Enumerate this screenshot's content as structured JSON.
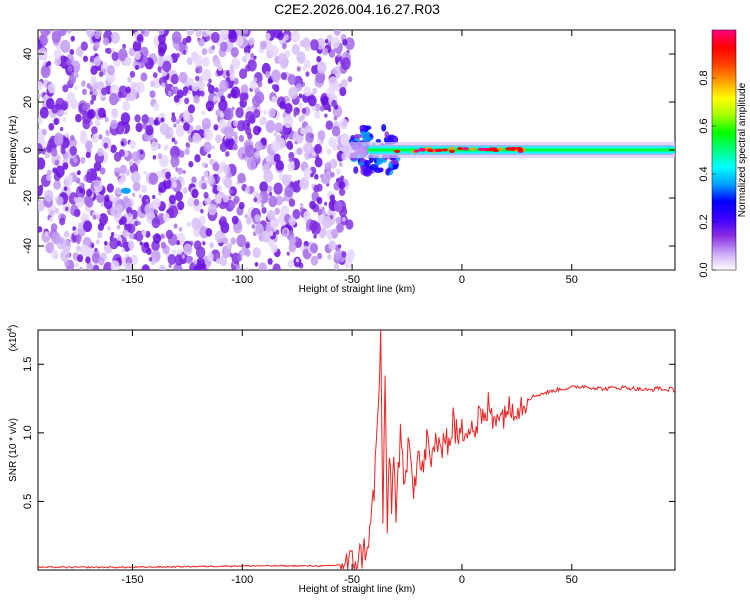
{
  "title": "C2E2.2026.004.16.27.R03",
  "colorbar": {
    "label": "Normalized spectral amplitude",
    "ticks": [
      "0.0",
      "0.2",
      "0.4",
      "0.6",
      "0.8"
    ],
    "tick_values": [
      0.0,
      0.2,
      0.4,
      0.6,
      0.8
    ],
    "range": [
      0,
      1
    ],
    "colors": [
      "#ffffff",
      "#c9a6f5",
      "#8a2be2",
      "#3b00ff",
      "#0000ff",
      "#00a0ff",
      "#00ffff",
      "#00ff80",
      "#00ff00",
      "#a0ff00",
      "#ffff00",
      "#ffa000",
      "#ff4000",
      "#ff0000",
      "#ff0080"
    ]
  },
  "chart_data": [
    {
      "type": "heatmap",
      "title": "C2E2.2026.004.16.27.R03",
      "xlabel": "Height of straight line (km)",
      "ylabel": "Frequency (Hz)",
      "xlim": [
        -193,
        97
      ],
      "ylim": [
        -50,
        50
      ],
      "xticks": [
        -150,
        -100,
        -50,
        0,
        50
      ],
      "yticks": [
        -40,
        -20,
        0,
        20,
        40
      ],
      "description_of_content": "noise region x<-55 (sparse purple blobs), signal band near 0 Hz from -50 to 97 km",
      "signal_band": {
        "x_start": -52,
        "x_end": 97,
        "center_freq": 0,
        "peak_amplitude": 0.95
      }
    },
    {
      "type": "line",
      "xlabel": "Height of straight line (km)",
      "ylabel": "SNR (10 * v/v)",
      "y_multiplier": "(x10",
      "y_multiplier_exp": "4",
      "y_multiplier_close": ")",
      "xlim": [
        -193,
        97
      ],
      "ylim": [
        0,
        1.75
      ],
      "xticks": [
        -150,
        -100,
        -50,
        0,
        50
      ],
      "yticks": [
        0.5,
        1.0,
        1.5
      ],
      "ytick_labels": [
        "0.5",
        "1.0",
        "1.5"
      ],
      "color": "#ee2222",
      "series": [
        {
          "name": "SNR",
          "x": [
            -193,
            -150,
            -100,
            -60,
            -50,
            -45,
            -42,
            -40,
            -38,
            -37,
            -36,
            -35,
            -34,
            -33,
            -32,
            -31,
            -30,
            -28,
            -26,
            -24,
            -22,
            -20,
            -18,
            -16,
            -14,
            -12,
            -10,
            -8,
            -6,
            -4,
            -2,
            0,
            2,
            4,
            6,
            8,
            10,
            12,
            14,
            16,
            18,
            20,
            22,
            24,
            26,
            30,
            35,
            40,
            45,
            50,
            55,
            60,
            65,
            70,
            75,
            80,
            85,
            88,
            90,
            92,
            95,
            97
          ],
          "y": [
            0.02,
            0.02,
            0.03,
            0.03,
            0.05,
            0.12,
            0.25,
            0.6,
            1.2,
            1.7,
            0.4,
            1.3,
            0.3,
            0.9,
            0.5,
            0.8,
            0.45,
            0.95,
            0.55,
            1.05,
            0.6,
            0.85,
            0.7,
            0.95,
            0.75,
            1.0,
            0.8,
            1.05,
            0.9,
            1.1,
            0.95,
            1.0,
            1.05,
            1.1,
            1.0,
            1.15,
            1.05,
            1.2,
            1.1,
            1.18,
            1.1,
            1.2,
            1.15,
            1.22,
            1.2,
            1.25,
            1.28,
            1.3,
            1.32,
            1.33,
            1.34,
            1.33,
            1.32,
            1.33,
            1.33,
            1.32,
            1.31,
            1.32,
            1.33,
            1.31,
            1.32,
            1.31
          ]
        }
      ]
    }
  ]
}
